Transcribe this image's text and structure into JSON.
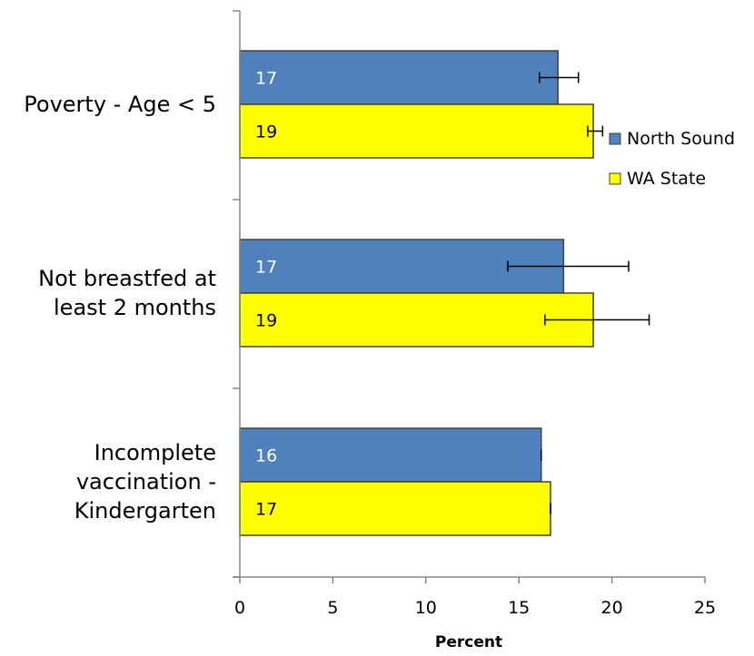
{
  "chart_data": {
    "type": "bar",
    "orientation": "horizontal",
    "categories": [
      [
        "Poverty - Age < 5"
      ],
      [
        "Not breastfed at",
        "least 2 months"
      ],
      [
        "Incomplete",
        "vaccination -",
        "Kindergarten"
      ]
    ],
    "series": [
      {
        "name": "North Sound",
        "color": "#4f81bd",
        "label_color": "#ffffff",
        "values": [
          17.1,
          17.4,
          16.2
        ],
        "data_labels": [
          "17",
          "17",
          "16"
        ],
        "error_low": [
          16.1,
          14.4,
          16.2
        ],
        "error_high": [
          18.2,
          20.9,
          16.2
        ]
      },
      {
        "name": "WA State",
        "color": "#ffff00",
        "label_color": "#000000",
        "values": [
          19.0,
          19.0,
          16.7
        ],
        "data_labels": [
          "19",
          "19",
          "17"
        ],
        "error_low": [
          18.7,
          16.4,
          16.7
        ],
        "error_high": [
          19.5,
          22.0,
          16.7
        ]
      }
    ],
    "xlabel": "Percent",
    "xlim": [
      0,
      25
    ],
    "xticks": [
      0,
      5,
      10,
      15,
      20,
      25
    ],
    "grid": false,
    "legend_position": "right"
  }
}
